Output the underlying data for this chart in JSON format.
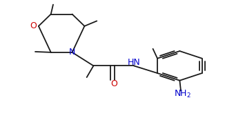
{
  "background_color": "#ffffff",
  "line_color": "#1a1a1a",
  "O_color": "#cc0000",
  "N_color": "#0000cc",
  "figsize": [
    3.26,
    1.87
  ],
  "dpi": 100,
  "xlim": [
    0,
    1
  ],
  "ylim": [
    0,
    1
  ]
}
